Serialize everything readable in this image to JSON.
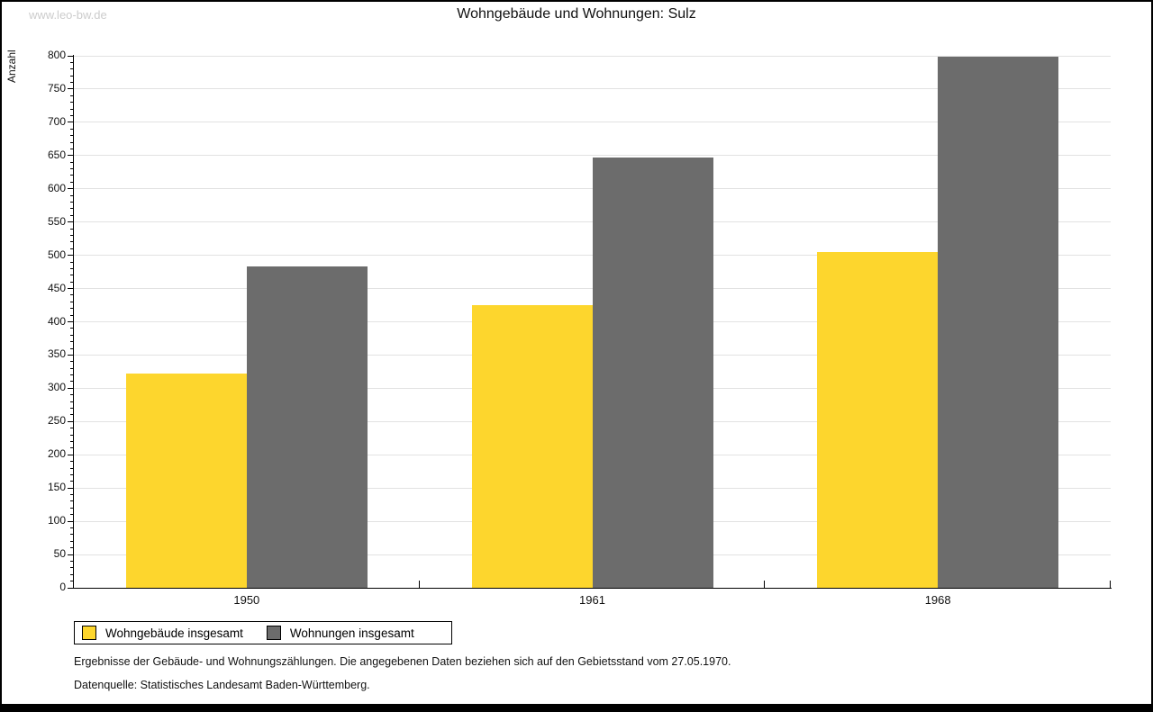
{
  "watermark": "www.leo-bw.de",
  "chart_data": {
    "type": "bar",
    "title": "Wohngebäude und Wohnungen: Sulz",
    "ylabel": "Anzahl",
    "xlabel": "",
    "categories": [
      "1950",
      "1961",
      "1968"
    ],
    "series": [
      {
        "name": "Wohngebäude insgesamt",
        "color": "#fdd62d",
        "values": [
          322,
          425,
          505
        ]
      },
      {
        "name": "Wohnungen insgesamt",
        "color": "#6c6c6c",
        "values": [
          483,
          647,
          798
        ]
      }
    ],
    "ylim": [
      0,
      800
    ],
    "y_major_step": 50,
    "y_minor_step": 10,
    "grid": true,
    "legend_position": "bottom-left"
  },
  "footer": {
    "line1": "Ergebnisse der Gebäude- und Wohnungszählungen. Die angegebenen Daten beziehen sich auf den Gebietsstand vom 27.05.1970.",
    "line2": "Datenquelle: Statistisches Landesamt Baden-Württemberg."
  }
}
